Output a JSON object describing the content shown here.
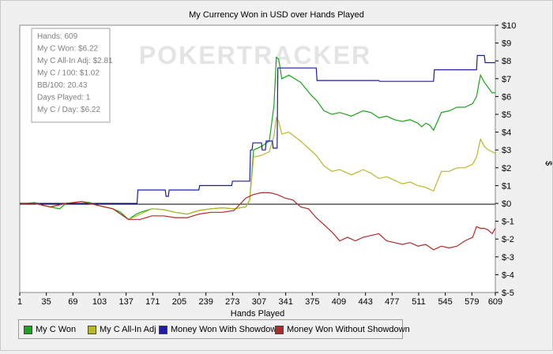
{
  "chart_data": {
    "type": "line",
    "title": "My Currency Won in USD over Hands Played",
    "xlabel": "Hands Played",
    "ylabel": "$",
    "xlim": [
      1,
      609
    ],
    "ylim": [
      -5,
      10
    ],
    "x_ticks": [
      "1",
      "35",
      "69",
      "103",
      "137",
      "171",
      "205",
      "239",
      "273",
      "307",
      "341",
      "375",
      "409",
      "443",
      "477",
      "511",
      "545",
      "579",
      "609"
    ],
    "y_ticks": [
      "$10",
      "$9",
      "$8",
      "$7",
      "$6",
      "$5",
      "$4",
      "$3",
      "$2",
      "$1",
      "$0",
      "$-1",
      "$-2",
      "$-3",
      "$-4",
      "$-5"
    ],
    "watermark": "POKERTRACKER",
    "stats": [
      "Hands: 609",
      "My C Won: $6.22",
      "My C All-In Adj: $2.81",
      "My C / 100: $1.02",
      "BB/100: 20.43",
      "Days Played: 1",
      "My C / Day: $6.22"
    ],
    "legend": "bottom-left",
    "series": [
      {
        "name": "My C Won",
        "color": "#1aa51a",
        "x": [
          1,
          10,
          20,
          30,
          40,
          52,
          60,
          70,
          80,
          90,
          100,
          110,
          120,
          130,
          140,
          150,
          155,
          170,
          185,
          200,
          215,
          230,
          245,
          260,
          275,
          290,
          295,
          300,
          310,
          320,
          326,
          329,
          332,
          336,
          345,
          360,
          375,
          380,
          390,
          400,
          410,
          425,
          440,
          450,
          460,
          470,
          480,
          490,
          500,
          510,
          515,
          520,
          525,
          530,
          540,
          550,
          560,
          570,
          580,
          585,
          590,
          595,
          600,
          605,
          609
        ],
        "y": [
          0.0,
          0.0,
          0.05,
          -0.1,
          -0.2,
          -0.3,
          0.0,
          0.05,
          0.1,
          0.05,
          -0.1,
          -0.2,
          -0.3,
          -0.5,
          -0.9,
          -0.6,
          -0.5,
          -0.3,
          -0.35,
          -0.5,
          -0.6,
          -0.4,
          -0.3,
          -0.25,
          -0.3,
          -0.2,
          0.2,
          3.0,
          3.2,
          3.5,
          5.5,
          8.2,
          8.1,
          7.0,
          7.2,
          6.8,
          6.0,
          5.8,
          5.2,
          5.0,
          5.1,
          4.9,
          5.2,
          5.1,
          4.8,
          4.9,
          4.7,
          4.6,
          4.7,
          4.5,
          4.3,
          4.5,
          4.4,
          4.1,
          5.1,
          5.2,
          5.4,
          5.4,
          5.6,
          6.0,
          7.2,
          6.8,
          6.5,
          6.2,
          6.22
        ]
      },
      {
        "name": "My C All-In Adj",
        "color": "#b8b82a",
        "x": [
          1,
          20,
          40,
          60,
          80,
          100,
          120,
          140,
          155,
          170,
          185,
          200,
          215,
          230,
          245,
          260,
          275,
          290,
          295,
          300,
          310,
          320,
          326,
          329,
          332,
          336,
          345,
          360,
          375,
          380,
          390,
          400,
          410,
          425,
          440,
          450,
          460,
          470,
          480,
          490,
          500,
          510,
          520,
          530,
          540,
          550,
          560,
          570,
          580,
          585,
          590,
          595,
          600,
          605,
          609
        ],
        "y": [
          0.0,
          0.0,
          -0.2,
          0.0,
          0.1,
          -0.1,
          -0.3,
          -0.9,
          -0.6,
          -0.3,
          -0.35,
          -0.5,
          -0.6,
          -0.4,
          -0.3,
          -0.25,
          -0.3,
          -0.2,
          0.2,
          2.6,
          2.7,
          2.9,
          3.8,
          4.8,
          4.6,
          3.9,
          4.0,
          3.5,
          2.9,
          2.7,
          2.1,
          1.8,
          1.9,
          1.6,
          1.9,
          1.7,
          1.4,
          1.5,
          1.3,
          1.1,
          1.2,
          1.0,
          0.9,
          0.7,
          1.8,
          1.8,
          2.0,
          2.0,
          2.2,
          2.6,
          3.6,
          3.2,
          3.0,
          2.9,
          2.81
        ]
      },
      {
        "name": "Money Won With Showdown",
        "color": "#1c1ca6",
        "x": [
          1,
          151,
          152,
          187,
          188,
          191,
          192,
          230,
          231,
          272,
          273,
          295,
          296,
          298,
          299,
          310,
          311,
          315,
          316,
          324,
          325,
          330,
          331,
          380,
          381,
          390,
          391,
          460,
          461,
          515,
          516,
          530,
          531,
          585,
          586,
          595,
          596,
          609
        ],
        "y": [
          0.0,
          0.0,
          0.75,
          0.75,
          0.4,
          0.4,
          0.75,
          0.75,
          1.0,
          1.0,
          1.25,
          1.25,
          3.0,
          3.0,
          3.4,
          3.4,
          3.0,
          3.0,
          3.5,
          3.5,
          3.1,
          3.1,
          7.6,
          7.6,
          6.9,
          6.9,
          6.9,
          6.9,
          6.85,
          6.85,
          6.85,
          6.85,
          7.5,
          7.5,
          8.3,
          8.3,
          7.9,
          7.9
        ]
      },
      {
        "name": "Money Won Without Showdown",
        "color": "#b22a2a",
        "x": [
          1,
          20,
          40,
          60,
          80,
          100,
          120,
          140,
          155,
          170,
          185,
          200,
          215,
          230,
          245,
          260,
          275,
          290,
          300,
          310,
          320,
          330,
          340,
          350,
          360,
          370,
          380,
          390,
          400,
          410,
          420,
          430,
          440,
          450,
          460,
          470,
          480,
          490,
          500,
          510,
          520,
          530,
          540,
          550,
          560,
          570,
          580,
          585,
          590,
          595,
          600,
          605,
          609
        ],
        "y": [
          0.0,
          0.0,
          -0.2,
          0.0,
          0.1,
          -0.1,
          -0.3,
          -0.9,
          -0.9,
          -0.7,
          -0.7,
          -0.8,
          -0.8,
          -0.6,
          -0.5,
          -0.5,
          -0.4,
          0.3,
          0.5,
          0.6,
          0.6,
          0.5,
          0.3,
          0.2,
          -0.2,
          -0.3,
          -0.8,
          -1.2,
          -1.6,
          -2.1,
          -1.9,
          -2.1,
          -1.9,
          -1.8,
          -1.7,
          -2.1,
          -2.2,
          -2.3,
          -2.2,
          -2.4,
          -2.3,
          -2.6,
          -2.4,
          -2.5,
          -2.4,
          -2.1,
          -1.9,
          -1.3,
          -1.4,
          -1.4,
          -1.5,
          -1.7,
          -1.4
        ]
      }
    ]
  }
}
